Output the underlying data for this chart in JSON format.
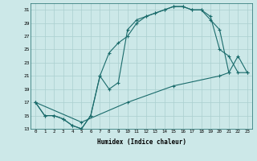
{
  "xlabel": "Humidex (Indice chaleur)",
  "background_color": "#cce8e8",
  "grid_color": "#aacfcf",
  "line_color": "#1a6b6b",
  "ylim": [
    13,
    32
  ],
  "xlim": [
    -0.5,
    23.5
  ],
  "yticks": [
    13,
    15,
    17,
    19,
    21,
    23,
    25,
    27,
    29,
    31
  ],
  "xticks": [
    0,
    1,
    2,
    3,
    4,
    5,
    6,
    7,
    8,
    9,
    10,
    11,
    12,
    13,
    14,
    15,
    16,
    17,
    18,
    19,
    20,
    21,
    22,
    23
  ],
  "line1_x": [
    0,
    1,
    2,
    3,
    4,
    5,
    6,
    7,
    8,
    9,
    10,
    11,
    12,
    13,
    14,
    15,
    16,
    17,
    18,
    19,
    20,
    21,
    22,
    23
  ],
  "line1_y": [
    17,
    15,
    15,
    14.5,
    13.5,
    13,
    15,
    21,
    19,
    20,
    28,
    29.5,
    30,
    30.5,
    31,
    31.5,
    31.5,
    31,
    31,
    30,
    25,
    24,
    21.5,
    21.5
  ],
  "line2_x": [
    0,
    1,
    2,
    3,
    4,
    5,
    6,
    7,
    8,
    9,
    10,
    11,
    12,
    13,
    14,
    15,
    16,
    17,
    18,
    19,
    20,
    21
  ],
  "line2_y": [
    17,
    15,
    15,
    14.5,
    13.5,
    13,
    15,
    21,
    24.5,
    26,
    27,
    29,
    30,
    30.5,
    31,
    31.5,
    31.5,
    31,
    31,
    29.5,
    28,
    21.5
  ],
  "line3_x": [
    0,
    5,
    10,
    15,
    20,
    21,
    22,
    23
  ],
  "line3_y": [
    17,
    14,
    17,
    19.5,
    21,
    21.5,
    24,
    21.5
  ]
}
